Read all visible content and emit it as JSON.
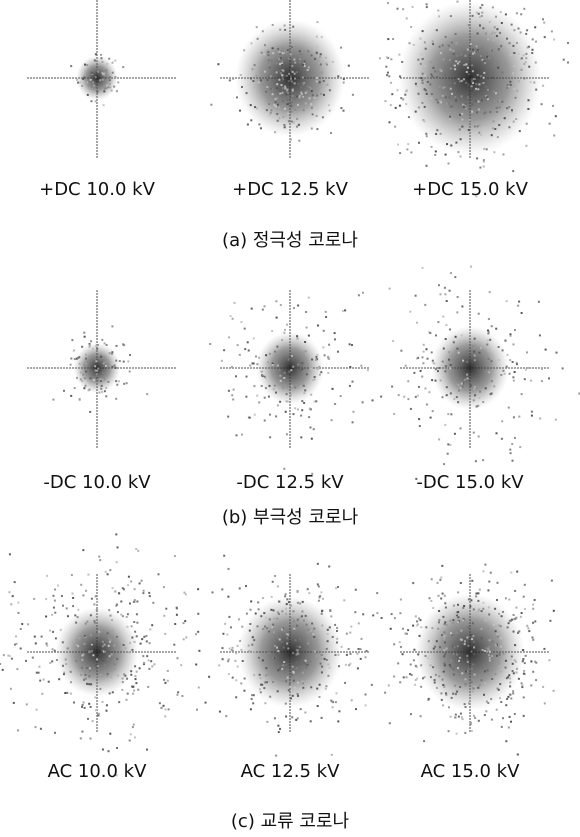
{
  "groups": [
    {
      "caption": "(a) 정극성 코로나",
      "panels": [
        {
          "label": "+DC 10.0 kV"
        },
        {
          "label": "+DC 12.5 kV"
        },
        {
          "label": "+DC 15.0 kV"
        }
      ]
    },
    {
      "caption": "(b) 부극성 코로나",
      "panels": [
        {
          "label": "-DC 10.0 kV"
        },
        {
          "label": "-DC 12.5 kV"
        },
        {
          "label": "-DC 15.0 kV"
        }
      ]
    },
    {
      "caption": "(c) 교류 코로나",
      "panels": [
        {
          "label": "AC 10.0 kV"
        },
        {
          "label": "AC 12.5 kV"
        },
        {
          "label": "AC 15.0 kV"
        }
      ]
    }
  ]
}
